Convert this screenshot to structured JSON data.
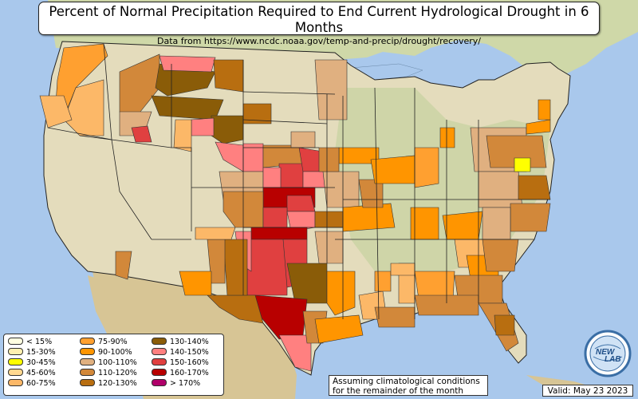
{
  "title": {
    "main": "Percent of Normal Precipitation Required to End Current Hydrological Drought in 6 Months",
    "sub": "Data from https://www.ncdc.noaa.gov/temp-and-precip/drought/recovery/"
  },
  "legend": [
    {
      "label": "< 15%",
      "color": "#ffffe0"
    },
    {
      "label": "15-30%",
      "color": "#fff0b0"
    },
    {
      "label": "30-45%",
      "color": "#ffff00"
    },
    {
      "label": "45-60%",
      "color": "#ffd890"
    },
    {
      "label": "60-75%",
      "color": "#fcb868"
    },
    {
      "label": "75-90%",
      "color": "#ffa030"
    },
    {
      "label": "90-100%",
      "color": "#ff9500"
    },
    {
      "label": "100-110%",
      "color": "#e0b080"
    },
    {
      "label": "110-120%",
      "color": "#d2883a"
    },
    {
      "label": "120-130%",
      "color": "#b86e10"
    },
    {
      "label": "130-140%",
      "color": "#8a5c08"
    },
    {
      "label": "140-150%",
      "color": "#ff8080"
    },
    {
      "label": "150-160%",
      "color": "#e04040"
    },
    {
      "label": "160-170%",
      "color": "#b80000"
    },
    {
      "label": "> 170%",
      "color": "#b0006a"
    }
  ],
  "note": {
    "line1": "Assuming climatological conditions",
    "line2": "for the remainder of the month"
  },
  "valid": "Valid: May 23 2023",
  "logo": {
    "text_part1": "NEW",
    "text_part2": "LAB",
    "icon": "globe-logo-icon"
  },
  "colors": {
    "water": "#a9c8ec",
    "land_base": "#e6dfc2",
    "land_green": "#c8d4a4",
    "land_tan": "#d8c79c",
    "border": "#222222"
  }
}
